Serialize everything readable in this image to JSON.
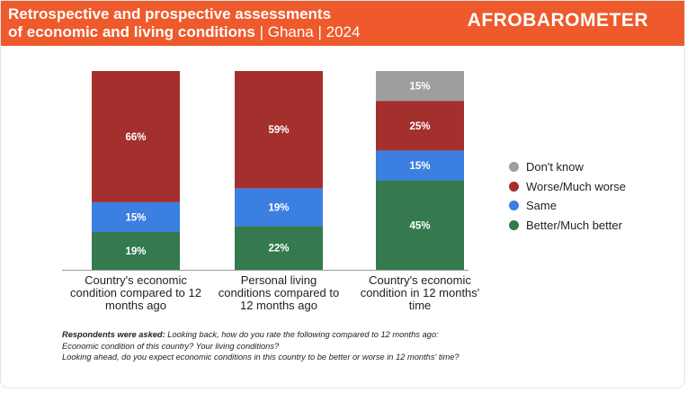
{
  "header": {
    "title_line1": "Retrospective and prospective assessments",
    "title_line2_bold": "of economic and living conditions",
    "title_line2_light": " | Ghana | 2024",
    "logo": "AFROBAROMETER"
  },
  "colors": {
    "header": "#ee5a2b",
    "dont_know": "#9e9e9e",
    "worse": "#a4302d",
    "same": "#3b7fe0",
    "better": "#347a4e"
  },
  "chart_data": {
    "type": "bar",
    "stacked": true,
    "title": "Retrospective and prospective assessments of economic and living conditions | Ghana | 2024",
    "categories": [
      [
        "Country's economic",
        "condition compared to 12",
        "months ago"
      ],
      [
        "Personal living",
        "conditions compared to",
        "12 months ago"
      ],
      [
        "Country's economic",
        "condition in 12 months'",
        "time"
      ]
    ],
    "series": [
      {
        "name": "Better/Much better",
        "color_key": "better",
        "values": [
          19,
          22,
          45
        ]
      },
      {
        "name": "Same",
        "color_key": "same",
        "values": [
          15,
          19,
          15
        ]
      },
      {
        "name": "Worse/Much worse",
        "color_key": "worse",
        "values": [
          66,
          59,
          25
        ]
      },
      {
        "name": "Don't know",
        "color_key": "dont_know",
        "values": [
          0,
          0,
          15
        ]
      }
    ],
    "ylim": [
      0,
      100
    ],
    "legend_position": "right",
    "legend_order": [
      "Don't know",
      "Worse/Much worse",
      "Same",
      "Better/Much better"
    ],
    "data_label_suffix": "%"
  },
  "footnote": {
    "bold": "Respondents were asked:",
    "line1": " Looking back, how do you rate the following compared to 12 months ago:",
    "line2": "Economic condition of this country? Your living conditions?",
    "line3": "Looking ahead, do you expect economic conditions in this country to be better or worse in 12 months' time?"
  }
}
